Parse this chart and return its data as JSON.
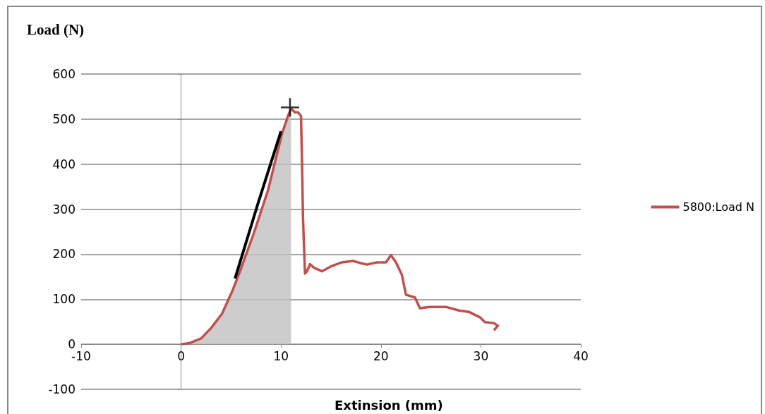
{
  "chart_data": {
    "type": "line",
    "ylabel": "Load (N)",
    "xlabel": "Extinsion (mm)",
    "xlim": [
      -10,
      40
    ],
    "xticks": [
      -10,
      0,
      10,
      20,
      30,
      40
    ],
    "ylim": [
      -100,
      600
    ],
    "yticks": [
      -100,
      0,
      100,
      200,
      300,
      400,
      500,
      600
    ],
    "grid": "y",
    "legend": "right",
    "marker": "none",
    "line_style": "solid",
    "series": [
      {
        "type": "area",
        "color": "#c0c0c0",
        "x": [
          0,
          0.9,
          2,
          3,
          4.1,
          5.2,
          5.9,
          7.3,
          8.7,
          10.1,
          10.7,
          11
        ],
        "values": [
          0,
          3,
          13,
          36,
          68,
          122,
          162,
          248,
          342,
          468,
          507,
          523
        ]
      },
      {
        "name": "5800:Load N",
        "color": "#c0504d",
        "x": [
          0,
          0.9,
          2,
          3,
          4.1,
          5.2,
          5.9,
          7.3,
          8.7,
          10.1,
          10.7,
          11,
          11.4,
          11.7,
          12,
          12.1,
          12.2,
          12.4,
          12.6,
          12.9,
          13.3,
          14.1,
          15,
          16.1,
          17.2,
          18,
          18.6,
          19.6,
          20.5,
          21,
          21.5,
          22.1,
          22.5,
          23.4,
          23.9,
          24.9,
          26.5,
          27.8,
          28.8,
          29.9,
          30.4,
          31.3,
          31.7,
          31.3
        ],
        "values": [
          0,
          3,
          13,
          36,
          68,
          122,
          162,
          248,
          342,
          468,
          507,
          523,
          515,
          515,
          507,
          405,
          280,
          157,
          162,
          178,
          170,
          162,
          173,
          182,
          185,
          180,
          177,
          182,
          182,
          198,
          182,
          154,
          110,
          104,
          80,
          83,
          83,
          75,
          72,
          60,
          49,
          47,
          41,
          31
        ]
      },
      {
        "type": "line",
        "color": "#000000",
        "x": [
          5.4,
          7.7,
          10
        ],
        "values": [
          146,
          313,
          473
        ]
      },
      {
        "type": "scatter",
        "marker": "cross",
        "color": "#000000",
        "x": [
          10.9
        ],
        "values": [
          526
        ]
      }
    ]
  }
}
